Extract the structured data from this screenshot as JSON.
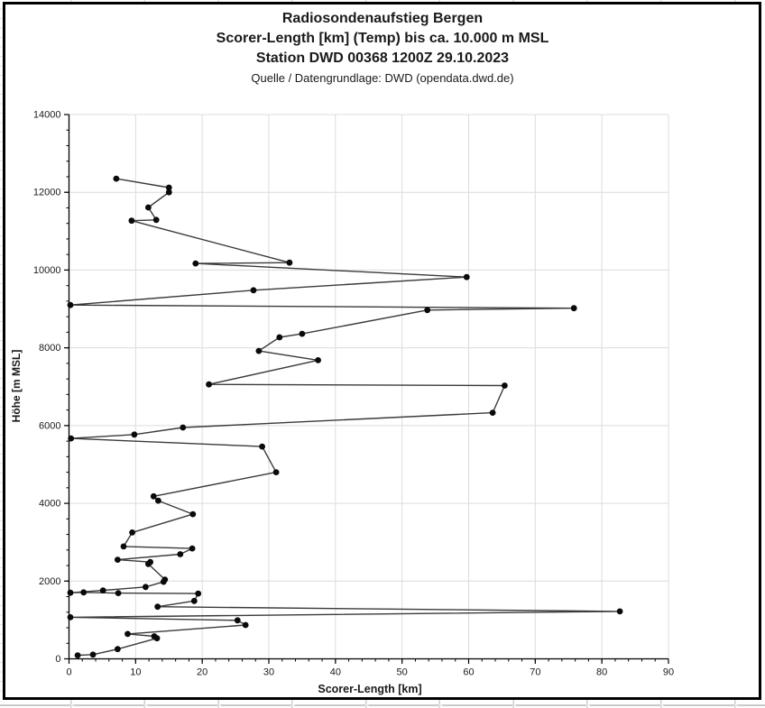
{
  "chart_data": {
    "type": "line",
    "title": "Radiosondenaufstieg Bergen",
    "subtitle": "Scorer-Length [km] (Temp) bis ca. 10.000 m MSL",
    "subtitle2": "Station DWD 00368 1200Z 29.10.2023",
    "source": "Quelle / Datengrundlage: DWD (opendata.dwd.de)",
    "xlabel": "Scorer-Length [km]",
    "ylabel": "Höhe [m MSL]",
    "xlim": [
      0,
      90
    ],
    "ylim": [
      0,
      14000
    ],
    "x_ticks": [
      0,
      10,
      20,
      30,
      40,
      50,
      60,
      70,
      80,
      90
    ],
    "y_ticks": [
      0,
      2000,
      4000,
      6000,
      8000,
      10000,
      12000,
      14000
    ],
    "x_minor_step": 2,
    "y_minor_step": 400,
    "grid": true,
    "legend": false,
    "marker": "circle",
    "colors": {
      "line": "#3a3a3a",
      "marker": "#0a0a0a",
      "grid": "#dcdcdc",
      "axis": "#000000",
      "tick_label": "#1a1a1a"
    },
    "series": [
      {
        "name": "Scorer-Length (Temp)",
        "points": [
          [
            1.3,
            90
          ],
          [
            3.6,
            110
          ],
          [
            7.3,
            250
          ],
          [
            13.2,
            530
          ],
          [
            12.8,
            580
          ],
          [
            8.8,
            640
          ],
          [
            26.5,
            870
          ],
          [
            25.3,
            990
          ],
          [
            0.2,
            1070
          ],
          [
            82.7,
            1220
          ],
          [
            13.3,
            1340
          ],
          [
            18.8,
            1490
          ],
          [
            19.4,
            1680
          ],
          [
            7.4,
            1690
          ],
          [
            2.2,
            1710
          ],
          [
            0.2,
            1700
          ],
          [
            5.1,
            1760
          ],
          [
            11.5,
            1850
          ],
          [
            14.2,
            1980
          ],
          [
            14.4,
            2040
          ],
          [
            11.9,
            2440
          ],
          [
            12.2,
            2490
          ],
          [
            7.3,
            2550
          ],
          [
            16.7,
            2690
          ],
          [
            18.5,
            2840
          ],
          [
            8.2,
            2890
          ],
          [
            9.5,
            3250
          ],
          [
            18.6,
            3720
          ],
          [
            13.4,
            4070
          ],
          [
            12.7,
            4180
          ],
          [
            31.1,
            4800
          ],
          [
            29.0,
            5460
          ],
          [
            0.3,
            5670
          ],
          [
            9.8,
            5770
          ],
          [
            17.1,
            5950
          ],
          [
            63.6,
            6330
          ],
          [
            65.4,
            7030
          ],
          [
            21.0,
            7060
          ],
          [
            37.4,
            7680
          ],
          [
            28.5,
            7920
          ],
          [
            31.6,
            8270
          ],
          [
            35.0,
            8360
          ],
          [
            53.8,
            8970
          ],
          [
            75.8,
            9020
          ],
          [
            0.2,
            9100
          ],
          [
            27.7,
            9480
          ],
          [
            59.7,
            9820
          ],
          [
            19.0,
            10170
          ],
          [
            33.1,
            10190
          ],
          [
            9.4,
            11270
          ],
          [
            13.1,
            11290
          ],
          [
            11.9,
            11610
          ],
          [
            15.0,
            12000
          ],
          [
            15.0,
            12120
          ],
          [
            7.1,
            12350
          ]
        ]
      }
    ]
  }
}
